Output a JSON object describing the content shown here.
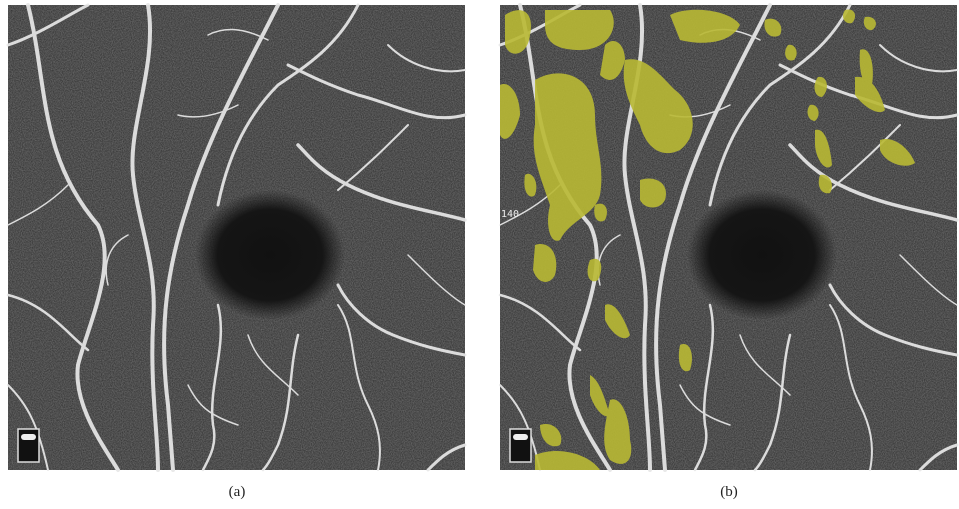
{
  "panels": [
    {
      "label": "(a)"
    },
    {
      "label": "(b)",
      "overlay_text": "140"
    }
  ]
}
